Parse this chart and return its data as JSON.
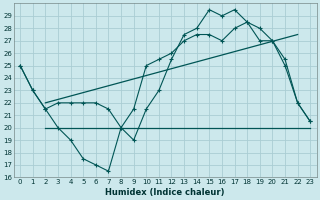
{
  "xlabel": "Humidex (Indice chaleur)",
  "background_color": "#cce8ec",
  "grid_color": "#aacdd4",
  "line_color": "#005555",
  "xlim": [
    -0.5,
    23.5
  ],
  "ylim": [
    16,
    30
  ],
  "xticks": [
    0,
    1,
    2,
    3,
    4,
    5,
    6,
    7,
    8,
    9,
    10,
    11,
    12,
    13,
    14,
    15,
    16,
    17,
    18,
    19,
    20,
    21,
    22,
    23
  ],
  "yticks": [
    16,
    17,
    18,
    19,
    20,
    21,
    22,
    23,
    24,
    25,
    26,
    27,
    28,
    29
  ],
  "line1_x": [
    0,
    1,
    2,
    3,
    4,
    5,
    6,
    7,
    8,
    9,
    10,
    11,
    12,
    13,
    14,
    15,
    16,
    17,
    18,
    19,
    20,
    21,
    22,
    23
  ],
  "line1_y": [
    25.0,
    23.0,
    21.5,
    20.0,
    19.0,
    17.5,
    17.0,
    16.5,
    20.0,
    19.0,
    21.5,
    23.0,
    25.5,
    27.5,
    28.0,
    29.5,
    29.0,
    29.5,
    28.5,
    27.0,
    27.0,
    25.0,
    22.0,
    20.5
  ],
  "line2_x": [
    0,
    1,
    2,
    3,
    4,
    5,
    6,
    7,
    8,
    9,
    10,
    11,
    12,
    13,
    14,
    15,
    16,
    17,
    18,
    19,
    20,
    21,
    22,
    23
  ],
  "line2_y": [
    25.0,
    23.0,
    21.5,
    22.0,
    22.0,
    22.0,
    22.0,
    21.5,
    20.0,
    21.5,
    25.0,
    25.5,
    26.0,
    27.0,
    27.5,
    27.5,
    27.0,
    28.0,
    28.5,
    28.0,
    27.0,
    25.5,
    22.0,
    20.5
  ],
  "line3_x": [
    2,
    23
  ],
  "line3_y": [
    20.0,
    20.0
  ],
  "line4_x": [
    2,
    22
  ],
  "line4_y": [
    22.0,
    27.5
  ]
}
